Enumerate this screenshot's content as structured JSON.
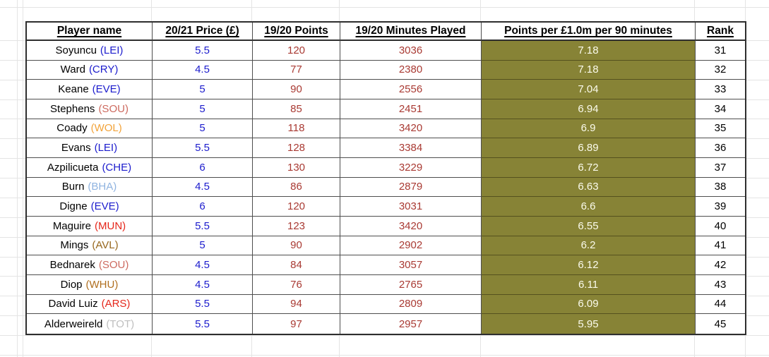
{
  "table": {
    "columns": [
      {
        "label": "Player name"
      },
      {
        "label": "20/21 Price (£)"
      },
      {
        "label": "19/20 Points"
      },
      {
        "label": "19/20 Minutes Played"
      },
      {
        "label": "Points per £1.0m per 90 minutes"
      },
      {
        "label": "Rank"
      }
    ],
    "rows": [
      {
        "player": "Soyuncu",
        "team": "LEI",
        "price": "5.5",
        "points": "120",
        "minutes": "3036",
        "per90": "7.18",
        "rank": "31"
      },
      {
        "player": "Ward",
        "team": "CRY",
        "price": "4.5",
        "points": "77",
        "minutes": "2380",
        "per90": "7.18",
        "rank": "32"
      },
      {
        "player": "Keane",
        "team": "EVE",
        "price": "5",
        "points": "90",
        "minutes": "2556",
        "per90": "7.04",
        "rank": "33"
      },
      {
        "player": "Stephens",
        "team": "SOU",
        "price": "5",
        "points": "85",
        "minutes": "2451",
        "per90": "6.94",
        "rank": "34"
      },
      {
        "player": "Coady",
        "team": "WOL",
        "price": "5",
        "points": "118",
        "minutes": "3420",
        "per90": "6.9",
        "rank": "35"
      },
      {
        "player": "Evans",
        "team": "LEI",
        "price": "5.5",
        "points": "128",
        "minutes": "3384",
        "per90": "6.89",
        "rank": "36"
      },
      {
        "player": "Azpilicueta",
        "team": "CHE",
        "price": "6",
        "points": "130",
        "minutes": "3229",
        "per90": "6.72",
        "rank": "37"
      },
      {
        "player": "Burn",
        "team": "BHA",
        "price": "4.5",
        "points": "86",
        "minutes": "2879",
        "per90": "6.63",
        "rank": "38"
      },
      {
        "player": "Digne",
        "team": "EVE",
        "price": "6",
        "points": "120",
        "minutes": "3031",
        "per90": "6.6",
        "rank": "39"
      },
      {
        "player": "Maguire",
        "team": "MUN",
        "price": "5.5",
        "points": "123",
        "minutes": "3420",
        "per90": "6.55",
        "rank": "40"
      },
      {
        "player": "Mings",
        "team": "AVL",
        "price": "5",
        "points": "90",
        "minutes": "2902",
        "per90": "6.2",
        "rank": "41"
      },
      {
        "player": "Bednarek",
        "team": "SOU",
        "price": "4.5",
        "points": "84",
        "minutes": "3057",
        "per90": "6.12",
        "rank": "42"
      },
      {
        "player": "Diop",
        "team": "WHU",
        "price": "4.5",
        "points": "76",
        "minutes": "2765",
        "per90": "6.11",
        "rank": "43"
      },
      {
        "player": "David Luiz",
        "team": "ARS",
        "price": "5.5",
        "points": "94",
        "minutes": "2809",
        "per90": "6.09",
        "rank": "44"
      },
      {
        "player": "Alderweireld",
        "team": "TOT",
        "price": "5.5",
        "points": "97",
        "minutes": "2957",
        "per90": "5.95",
        "rank": "45"
      }
    ]
  },
  "colors": {
    "highlight_bg": "#878336",
    "highlight_text": "#fbfbec",
    "price_text": "#1c1ccd",
    "stat_text": "#a93a33",
    "team": {
      "LEI": "#1c1ccd",
      "CRY": "#1c1ccd",
      "EVE": "#1c1ccd",
      "CHE": "#1c1ccd",
      "SOU": "#cd6a5f",
      "WOL": "#f2a33a",
      "BHA": "#8fb3e0",
      "MUN": "#e5271b",
      "ARS": "#e5271b",
      "AVL": "#97671d",
      "WHU": "#b06f1f",
      "TOT": "#bfbfbf"
    }
  }
}
